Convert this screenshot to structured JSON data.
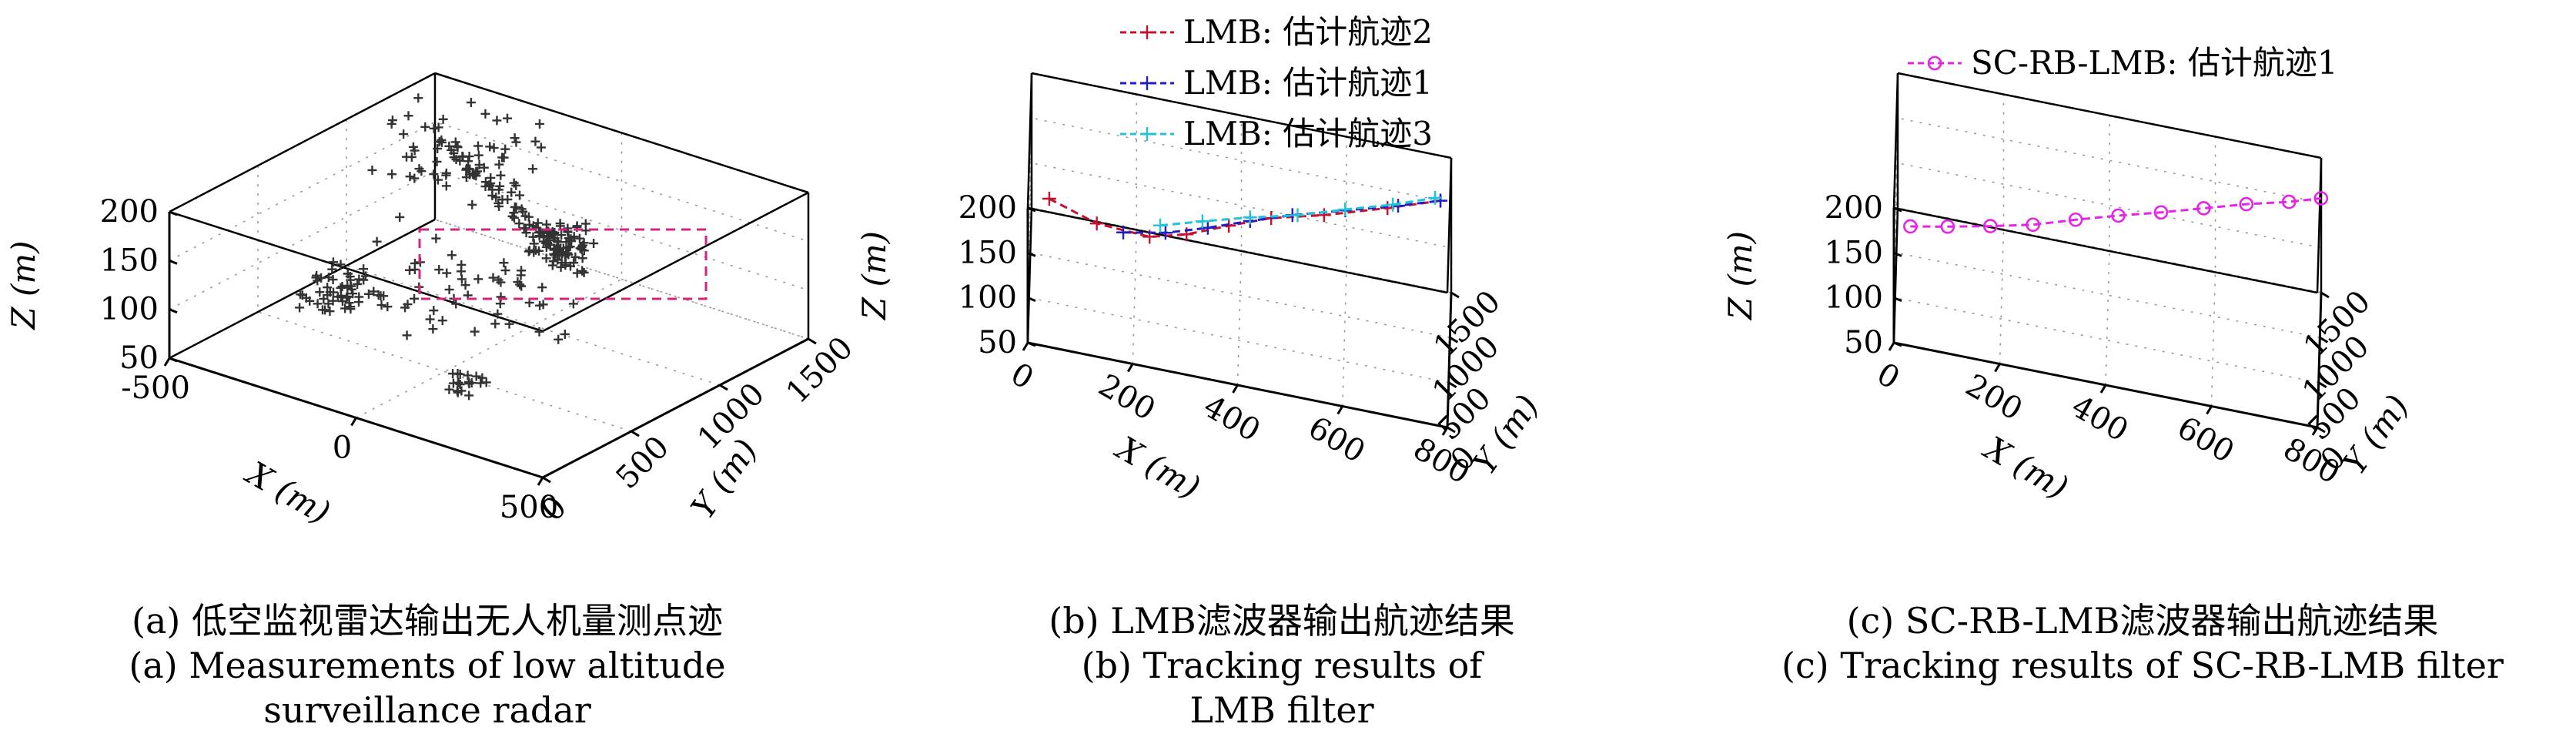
{
  "colors": {
    "lmb_track2": "#c8102e",
    "lmb_track1": "#1f1fc8",
    "lmb_track3": "#22c3d8",
    "scrb_track1": "#e524e5",
    "measurements": "#333333",
    "roi_box": "#d6247e"
  },
  "chart_data": [
    {
      "type": "scatter",
      "subtype": "3d-scatter",
      "caption_zh": "(a) 低空监视雷达输出无人机量测点迹",
      "caption_en_1": "(a) Measurements of low altitude",
      "caption_en_2": "surveillance radar",
      "xlabel": "X (m)",
      "ylabel": "Y (m)",
      "zlabel": "Z (m)",
      "xlim": [
        -500,
        500
      ],
      "ylim": [
        0,
        1500
      ],
      "zlim": [
        50,
        200
      ],
      "x_ticks": [
        "-500",
        "0",
        "500"
      ],
      "y_ticks": [
        "0",
        "500",
        "1000",
        "1500"
      ],
      "z_ticks": [
        "50",
        "100",
        "150",
        "200"
      ],
      "grid": true,
      "series": [
        {
          "marker": "+",
          "clusters": [
            {
              "x": -180,
              "y": 300,
              "z": 130,
              "spread": 70,
              "count": 60
            },
            {
              "x": 120,
              "y": 900,
              "z": 160,
              "spread": 60,
              "count": 70
            },
            {
              "x": 200,
              "y": 200,
              "z": 90,
              "spread": 40,
              "count": 20
            },
            {
              "x": -300,
              "y": 1200,
              "z": 170,
              "spread": 150,
              "count": 60
            },
            {
              "x": 0,
              "y": 700,
              "z": 120,
              "spread": 200,
              "count": 60
            }
          ]
        }
      ],
      "annotations": [
        {
          "type": "dashed-box",
          "note": "highlighted track region"
        }
      ]
    },
    {
      "type": "line",
      "subtype": "3d-line",
      "caption_zh": "(b) LMB滤波器输出航迹结果",
      "caption_en_1": "(b) Tracking results of",
      "caption_en_2": "LMB filter",
      "xlabel": "X (m)",
      "ylabel": "Y (m)",
      "zlabel": "Z (m)",
      "xlim": [
        0,
        800
      ],
      "ylim": [
        0,
        1500
      ],
      "zlim": [
        50,
        200
      ],
      "x_ticks": [
        "0",
        "200",
        "400",
        "600",
        "800"
      ],
      "y_ticks": [
        "0",
        "500",
        "1000",
        "1500"
      ],
      "z_ticks": [
        "50",
        "100",
        "150",
        "200"
      ],
      "grid": true,
      "legend_position": "top-left",
      "series": [
        {
          "name": "LMB: 估计航迹2",
          "marker": "+",
          "x": [
            40,
            130,
            230,
            300,
            380,
            460,
            560,
            680,
            780
          ],
          "y": [
            200,
            330,
            450,
            560,
            700,
            850,
            1000,
            1200,
            1400
          ],
          "z": [
            195,
            165,
            150,
            150,
            155,
            158,
            158,
            160,
            160
          ]
        },
        {
          "name": "LMB: 估计航迹1",
          "marker": "+",
          "x": [
            180,
            260,
            340,
            420,
            500,
            600,
            700,
            780
          ],
          "y": [
            420,
            530,
            660,
            800,
            940,
            1100,
            1250,
            1400
          ],
          "z": [
            152,
            150,
            152,
            155,
            157,
            158,
            160,
            160
          ]
        },
        {
          "name": "LMB: 估计航迹3",
          "marker": "+",
          "x": [
            250,
            330,
            420,
            510,
            600,
            690,
            770
          ],
          "y": [
            500,
            620,
            760,
            900,
            1060,
            1210,
            1370
          ],
          "z": [
            160,
            162,
            163,
            162,
            163,
            164,
            165
          ]
        }
      ]
    },
    {
      "type": "line",
      "subtype": "3d-line",
      "caption_zh": "(c) SC-RB-LMB滤波器输出航迹结果",
      "caption_en_1": "(c) Tracking results of SC-RB-LMB filter",
      "xlabel": "X (m)",
      "ylabel": "Y (m)",
      "zlabel": "Z (m)",
      "xlim": [
        0,
        800
      ],
      "ylim": [
        0,
        1500
      ],
      "zlim": [
        50,
        200
      ],
      "x_ticks": [
        "0",
        "200",
        "400",
        "600",
        "800"
      ],
      "y_ticks": [
        "0",
        "500",
        "1000",
        "1500"
      ],
      "z_ticks": [
        "50",
        "100",
        "150",
        "200"
      ],
      "grid": true,
      "legend_position": "top",
      "series": [
        {
          "name": "SC-RB-LMB: 估计航迹1",
          "marker": "o",
          "x": [
            30,
            100,
            180,
            260,
            340,
            420,
            500,
            580,
            660,
            740,
            800
          ],
          "y": [
            230,
            330,
            450,
            570,
            700,
            830,
            960,
            1090,
            1220,
            1340,
            1450
          ],
          "z": [
            160,
            158,
            156,
            155,
            157,
            158,
            158,
            159,
            160,
            160,
            160
          ]
        }
      ]
    }
  ]
}
